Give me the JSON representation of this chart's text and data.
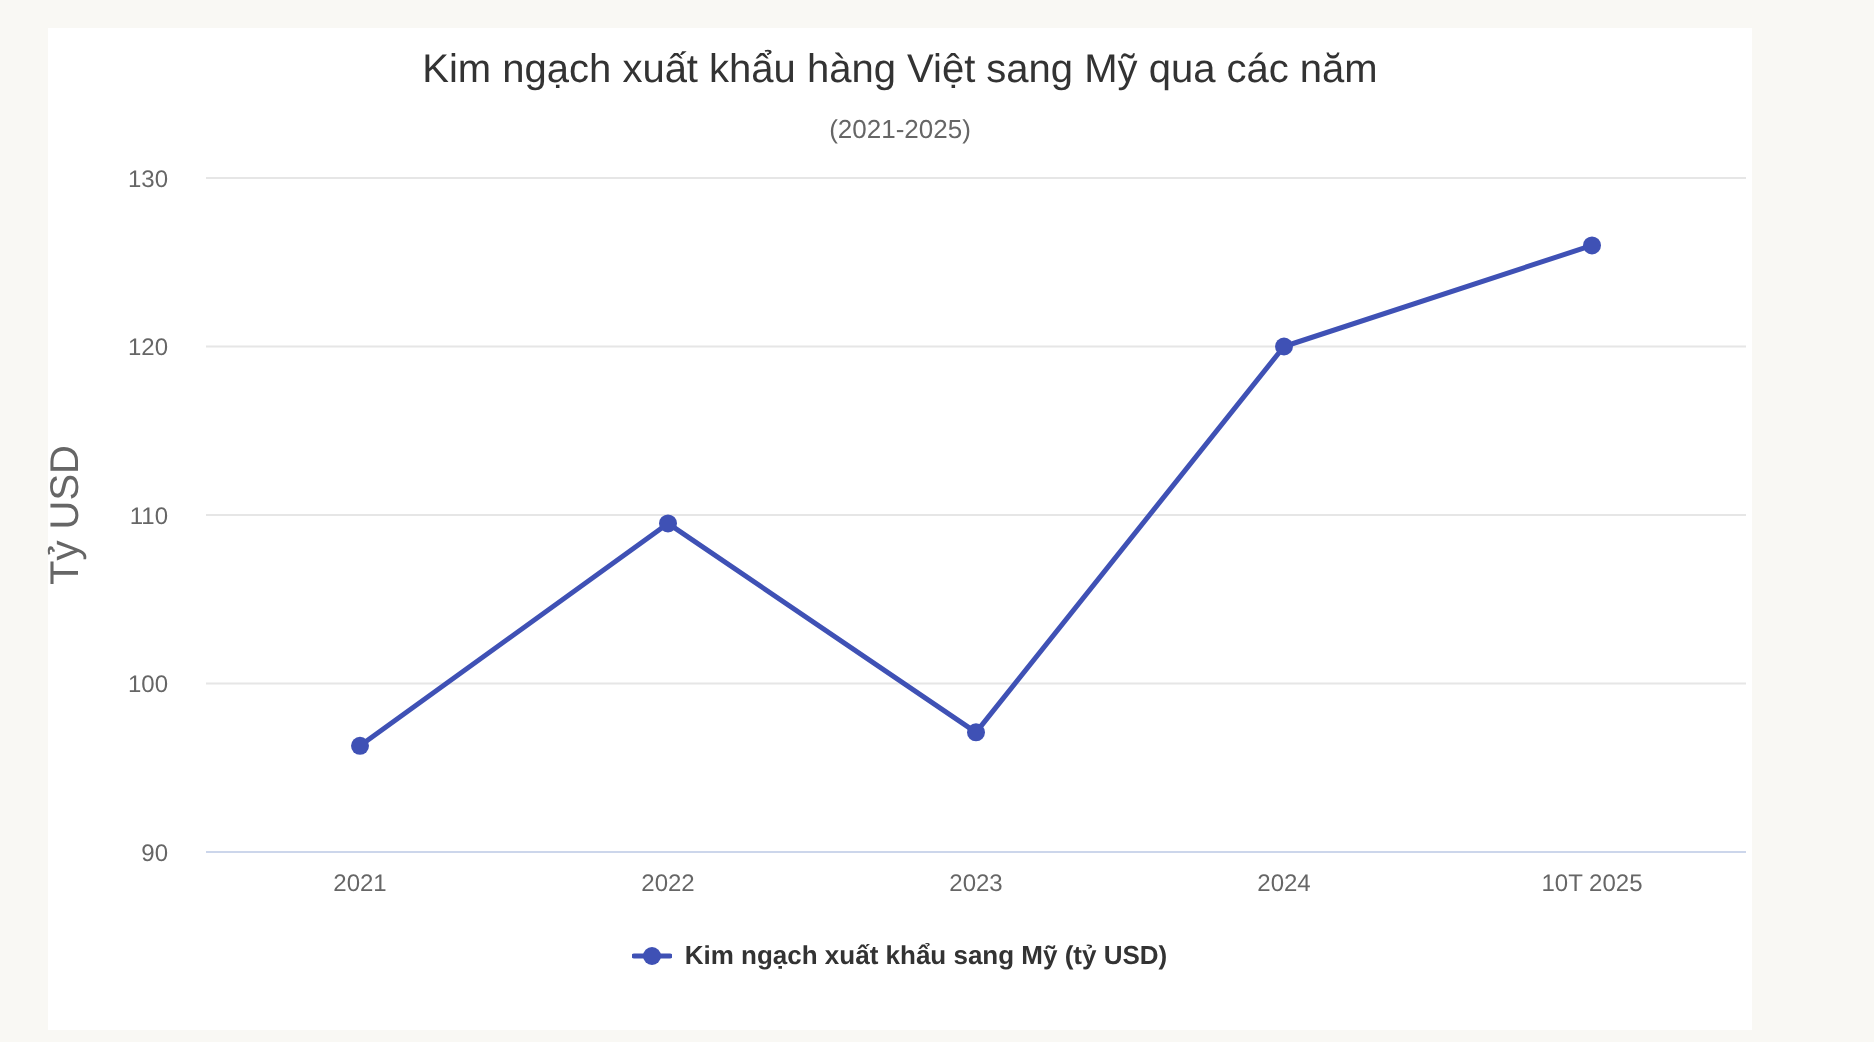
{
  "chart_data": {
    "type": "line",
    "title": "Kim ngạch xuất khẩu hàng Việt sang Mỹ qua các năm",
    "subtitle": "(2021-2025)",
    "ylabel": "Tỷ USD",
    "categories": [
      "2021",
      "2022",
      "2023",
      "2024",
      "10T 2025"
    ],
    "series": [
      {
        "name": "Kim ngạch xuất khẩu sang Mỹ (tỷ USD)",
        "color": "#3f51b5",
        "values": [
          96.3,
          109.5,
          97.1,
          120,
          126
        ]
      }
    ],
    "ylim": [
      90,
      130
    ],
    "yticks": [
      90,
      100,
      110,
      120,
      130
    ],
    "grid": "y",
    "legend": "bottom",
    "marker": "circle",
    "line_style": "solid"
  }
}
